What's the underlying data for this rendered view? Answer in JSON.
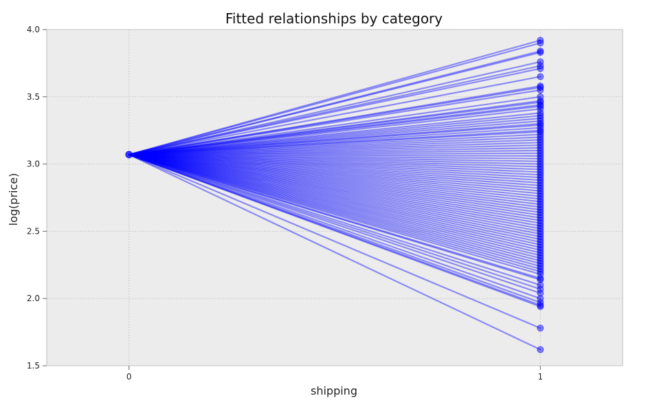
{
  "chart_data": {
    "type": "line",
    "title": "Fitted relationships by category",
    "xlabel": "shipping",
    "ylabel": "log(price)",
    "x": [
      0,
      1
    ],
    "xticks": [
      "0",
      "1"
    ],
    "yticks": [
      "1.5",
      "2.0",
      "2.5",
      "3.0",
      "3.5",
      "4.0"
    ],
    "xlim": [
      -0.2,
      1.2
    ],
    "ylim": [
      1.5,
      4.0
    ],
    "grid": true,
    "background_color": "#ececec",
    "line_color": "#0000ff",
    "marker": "circle",
    "intercept": 3.07,
    "end_values": [
      3.92,
      3.9,
      3.84,
      3.83,
      3.76,
      3.73,
      3.71,
      3.65,
      3.58,
      3.57,
      3.55,
      3.5,
      3.47,
      3.46,
      3.44,
      3.43,
      3.41,
      3.38,
      3.36,
      3.34,
      3.32,
      3.3,
      3.29,
      3.27,
      3.25,
      3.24,
      3.22,
      3.2,
      3.18,
      3.16,
      3.14,
      3.12,
      3.1,
      3.08,
      3.06,
      3.04,
      3.02,
      3.0,
      2.98,
      2.96,
      2.94,
      2.92,
      2.9,
      2.88,
      2.86,
      2.84,
      2.82,
      2.8,
      2.78,
      2.76,
      2.74,
      2.72,
      2.7,
      2.68,
      2.66,
      2.64,
      2.62,
      2.6,
      2.58,
      2.56,
      2.54,
      2.52,
      2.5,
      2.48,
      2.46,
      2.44,
      2.42,
      2.4,
      2.38,
      2.36,
      2.34,
      2.32,
      2.3,
      2.28,
      2.26,
      2.24,
      2.22,
      2.2,
      2.18,
      2.15,
      2.14,
      2.1,
      2.07,
      2.04,
      2.0,
      1.97,
      1.95,
      1.94,
      1.78,
      1.62
    ]
  }
}
